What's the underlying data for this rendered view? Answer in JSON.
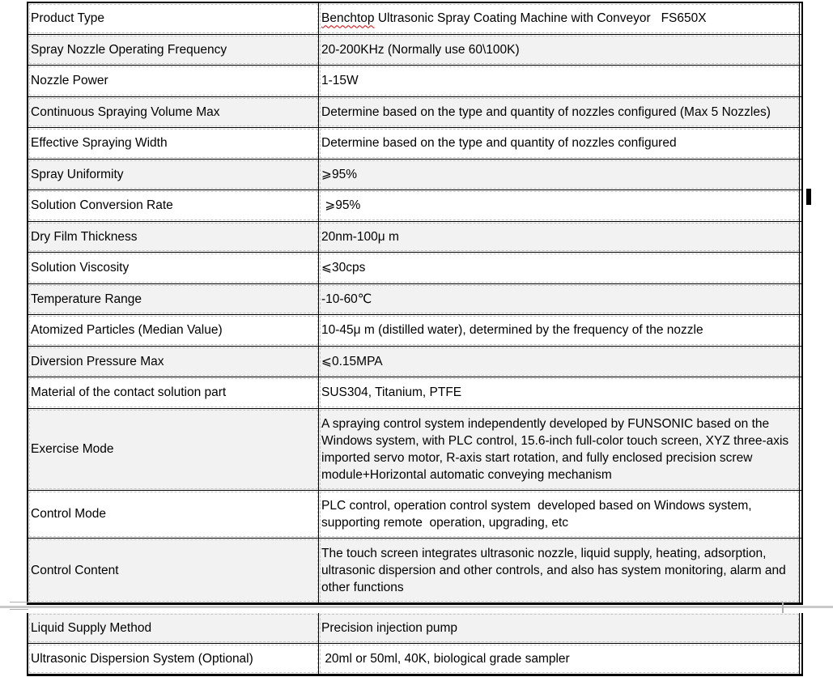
{
  "document": {
    "type": "product-specification-table",
    "product_model": "FS650X",
    "product_name": "Benchtop Ultrasonic Spray Coating Machine with Conveyor"
  },
  "colors": {
    "row_shade": "#f2f2f2",
    "border": "#000000",
    "gridline": "#c6c6c6",
    "pagebreak_line": "#c9c9c9",
    "spellcheck_underline": "#d40000"
  },
  "table": {
    "part1_rows": [
      {
        "label": "Product Type",
        "value": "Benchtop Ultrasonic Spray Coating Machine with Conveyor   FS650X",
        "shaded": false,
        "spell_error": "Benchtop"
      },
      {
        "label": "Spray Nozzle Operating Frequency",
        "value": "20-200KHz (Normally use 60\\100K)",
        "shaded": true
      },
      {
        "label": "Nozzle Power",
        "value": "1-15W",
        "shaded": false
      },
      {
        "label": "Continuous Spraying Volume Max",
        "value": "Determine based on the type and quantity of nozzles configured (Max 5 Nozzles)",
        "shaded": true
      },
      {
        "label": "Effective Spraying Width",
        "value": "Determine based on the type and quantity of nozzles configured",
        "shaded": false
      },
      {
        "label": "Spray Uniformity",
        "value": "⩾95%",
        "shaded": true
      },
      {
        "label": "Solution Conversion Rate",
        "value": " ⩾95%",
        "shaded": false
      },
      {
        "label": "Dry Film Thickness",
        "value": "20nm-100μ m",
        "shaded": true
      },
      {
        "label": "Solution Viscosity",
        "value": "⩽30cps",
        "shaded": false
      },
      {
        "label": "Temperature Range",
        "value": "-10-60℃",
        "shaded": true
      },
      {
        "label": "Atomized Particles (Median Value)",
        "value": "10-45μ m (distilled water), determined by the frequency of the nozzle",
        "shaded": false
      },
      {
        "label": "Diversion Pressure Max",
        "value": "⩽0.15MPA",
        "shaded": true
      },
      {
        "label": "Material of the contact solution part",
        "value": "SUS304, Titanium, PTFE",
        "shaded": false
      },
      {
        "label": "Exercise Mode",
        "value": "A spraying control system independently developed by FUNSONIC based on the\nWindows system, with PLC control, 15.6-inch full-color touch screen, XYZ three-axis\nimported servo motor, R-axis start rotation, and fully enclosed precision screw\nmodule+Horizontal automatic conveying mechanism",
        "shaded": true
      },
      {
        "label": "Control Mode",
        "value": "PLC control, operation control system  developed based on Windows system,\nsupporting remote  operation, upgrading, etc",
        "shaded": false
      },
      {
        "label": "Control Content",
        "value": "The touch screen integrates ultrasonic nozzle, liquid supply, heating, adsorption,\nultrasonic dispersion and other controls, and also has system monitoring, alarm and\nother functions",
        "shaded": true
      }
    ],
    "part2_rows": [
      {
        "label": "Liquid Supply Method",
        "value": "Precision injection pump",
        "shaded": true
      },
      {
        "label": "Ultrasonic Dispersion System (Optional)",
        "value": " 20ml or 50ml, 40K, biological grade sampler",
        "shaded": false
      }
    ]
  },
  "marks": {
    "page_break_line": "page-boundary-rule",
    "caret": "text-caret-mark"
  }
}
